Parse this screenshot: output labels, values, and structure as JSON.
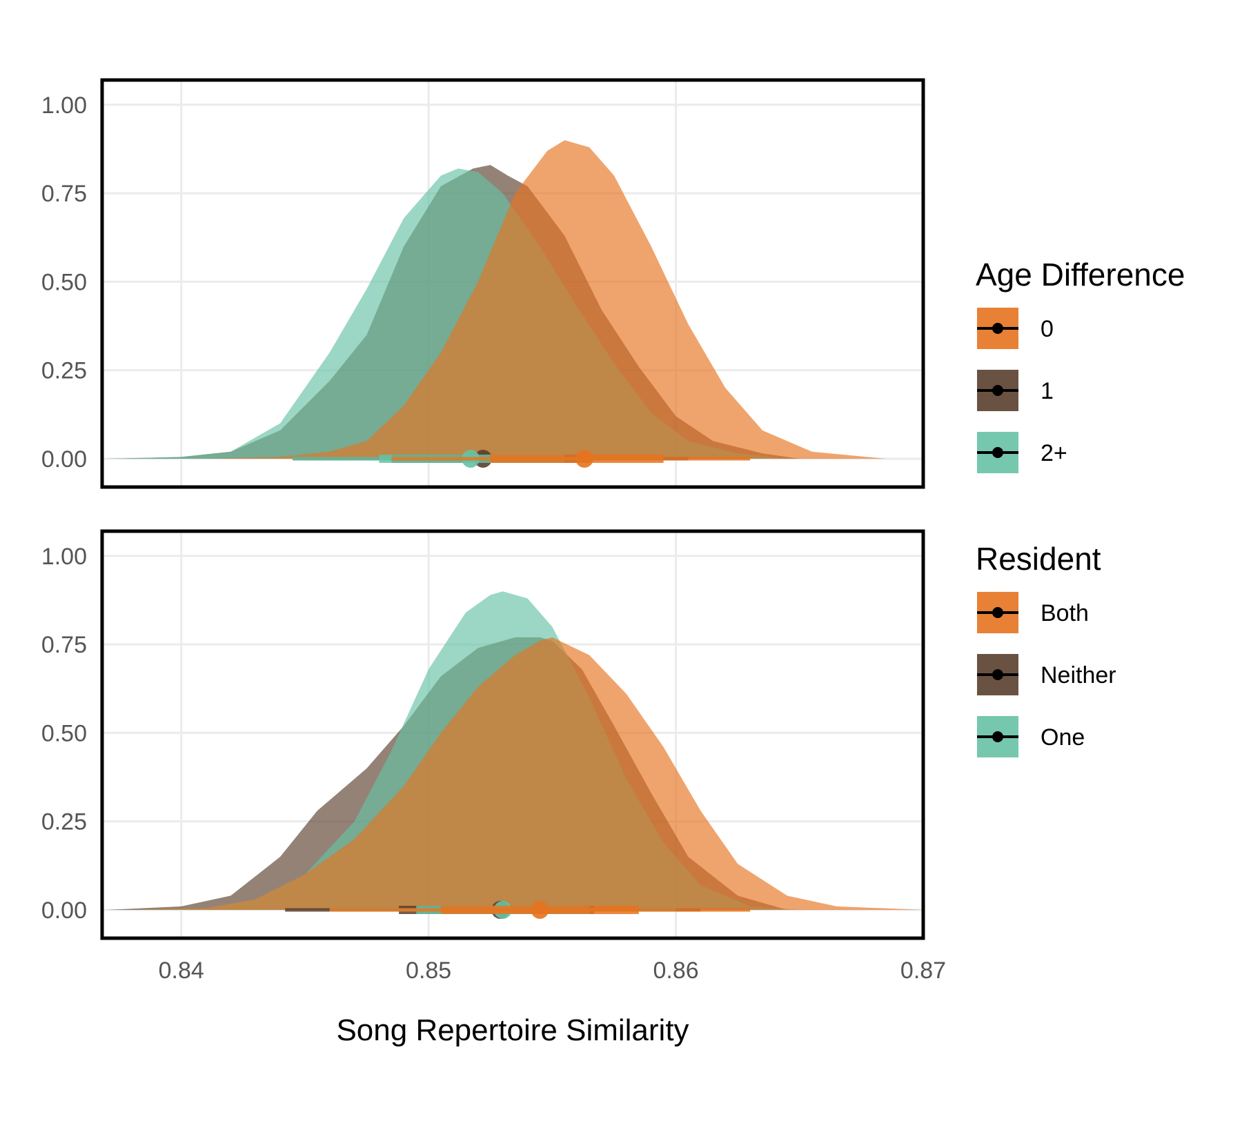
{
  "chart_data": {
    "type": "area",
    "xlabel": "Song Repertoire Similarity",
    "xlim": [
      0.8368,
      0.87
    ],
    "x_ticks": [
      "0.84",
      "0.85",
      "0.86",
      "0.87"
    ],
    "x_tick_values": [
      0.84,
      0.85,
      0.86,
      0.87
    ],
    "grid": true,
    "legend_position": "right",
    "panels": [
      {
        "name": "age-difference",
        "ylim": [
          -0.08,
          1.07
        ],
        "y_ticks": [
          "0.00",
          "0.25",
          "0.50",
          "0.75",
          "1.00"
        ],
        "y_tick_values": [
          0,
          0.25,
          0.5,
          0.75,
          1.0
        ],
        "legend_title": "Age Difference",
        "series": [
          {
            "name": "1",
            "color": "#5a3f2d",
            "x": [
              0.837,
              0.84,
              0.842,
              0.844,
              0.846,
              0.8475,
              0.849,
              0.8505,
              0.8518,
              0.8525,
              0.8532,
              0.854,
              0.8555,
              0.857,
              0.8585,
              0.86,
              0.8615,
              0.8635,
              0.865
            ],
            "y": [
              0,
              0.005,
              0.02,
              0.08,
              0.22,
              0.35,
              0.6,
              0.77,
              0.82,
              0.83,
              0.8,
              0.77,
              0.63,
              0.42,
              0.26,
              0.12,
              0.05,
              0.015,
              0
            ],
            "mean": 0.8522,
            "interval_66": [
              0.8485,
              0.8565
            ],
            "interval_95": [
              0.8445,
              0.8605
            ]
          },
          {
            "name": "2+",
            "color": "#66c2a5",
            "x": [
              0.837,
              0.84,
              0.842,
              0.844,
              0.846,
              0.8475,
              0.849,
              0.8505,
              0.8512,
              0.852,
              0.853,
              0.8545,
              0.856,
              0.8575,
              0.859,
              0.8605,
              0.8625,
              0.8645
            ],
            "y": [
              0,
              0.005,
              0.02,
              0.1,
              0.3,
              0.48,
              0.68,
              0.8,
              0.82,
              0.81,
              0.75,
              0.6,
              0.43,
              0.27,
              0.13,
              0.05,
              0.015,
              0
            ],
            "mean": 0.8517,
            "interval_66": [
              0.848,
              0.8555
            ],
            "interval_95": [
              0.8445,
              0.8595
            ]
          },
          {
            "name": "0",
            "color": "#e6731f",
            "x": [
              0.841,
              0.844,
              0.846,
              0.8475,
              0.849,
              0.8505,
              0.852,
              0.8535,
              0.8548,
              0.8555,
              0.8565,
              0.8575,
              0.859,
              0.8605,
              0.862,
              0.8635,
              0.8655,
              0.8685
            ],
            "y": [
              0,
              0.005,
              0.02,
              0.05,
              0.15,
              0.3,
              0.5,
              0.75,
              0.87,
              0.9,
              0.88,
              0.8,
              0.6,
              0.38,
              0.2,
              0.08,
              0.02,
              0
            ],
            "mean": 0.8563,
            "interval_66": [
              0.8525,
              0.8595
            ],
            "interval_95": [
              0.8485,
              0.863
            ]
          }
        ]
      },
      {
        "name": "resident",
        "ylim": [
          -0.08,
          1.07
        ],
        "y_ticks": [
          "0.00",
          "0.25",
          "0.50",
          "0.75",
          "1.00"
        ],
        "y_tick_values": [
          0,
          0.25,
          0.5,
          0.75,
          1.0
        ],
        "legend_title": "Resident",
        "series": [
          {
            "name": "Neither",
            "color": "#5a3f2d",
            "x": [
              0.837,
              0.84,
              0.842,
              0.844,
              0.8455,
              0.8475,
              0.849,
              0.8505,
              0.852,
              0.8535,
              0.8545,
              0.855,
              0.8562,
              0.8575,
              0.859,
              0.8605,
              0.8625,
              0.8645
            ],
            "y": [
              0,
              0.01,
              0.04,
              0.15,
              0.28,
              0.4,
              0.52,
              0.66,
              0.74,
              0.77,
              0.77,
              0.76,
              0.68,
              0.52,
              0.33,
              0.15,
              0.04,
              0
            ],
            "mean": 0.8529,
            "interval_66": [
              0.8488,
              0.8567
            ],
            "interval_95": [
              0.8442,
              0.861
            ]
          },
          {
            "name": "One",
            "color": "#66c2a5",
            "x": [
              0.838,
              0.841,
              0.843,
              0.845,
              0.847,
              0.8485,
              0.85,
              0.8515,
              0.8525,
              0.853,
              0.854,
              0.855,
              0.8565,
              0.858,
              0.8595,
              0.861,
              0.863,
              0.865
            ],
            "y": [
              0,
              0.005,
              0.03,
              0.1,
              0.25,
              0.45,
              0.68,
              0.84,
              0.89,
              0.9,
              0.88,
              0.8,
              0.6,
              0.37,
              0.19,
              0.07,
              0.01,
              0
            ],
            "mean": 0.853,
            "interval_66": [
              0.8495,
              0.8565
            ],
            "interval_95": [
              0.846,
              0.86
            ]
          },
          {
            "name": "Both",
            "color": "#e6731f",
            "x": [
              0.838,
              0.841,
              0.843,
              0.845,
              0.847,
              0.849,
              0.8505,
              0.852,
              0.8535,
              0.8545,
              0.855,
              0.8565,
              0.858,
              0.8595,
              0.861,
              0.8625,
              0.8645,
              0.8665,
              0.87
            ],
            "y": [
              0,
              0.005,
              0.03,
              0.1,
              0.2,
              0.35,
              0.5,
              0.63,
              0.72,
              0.76,
              0.77,
              0.72,
              0.61,
              0.46,
              0.28,
              0.13,
              0.04,
              0.01,
              0
            ],
            "mean": 0.8545,
            "interval_66": [
              0.8505,
              0.8585
            ],
            "interval_95": [
              0.846,
              0.863
            ]
          }
        ]
      }
    ]
  }
}
